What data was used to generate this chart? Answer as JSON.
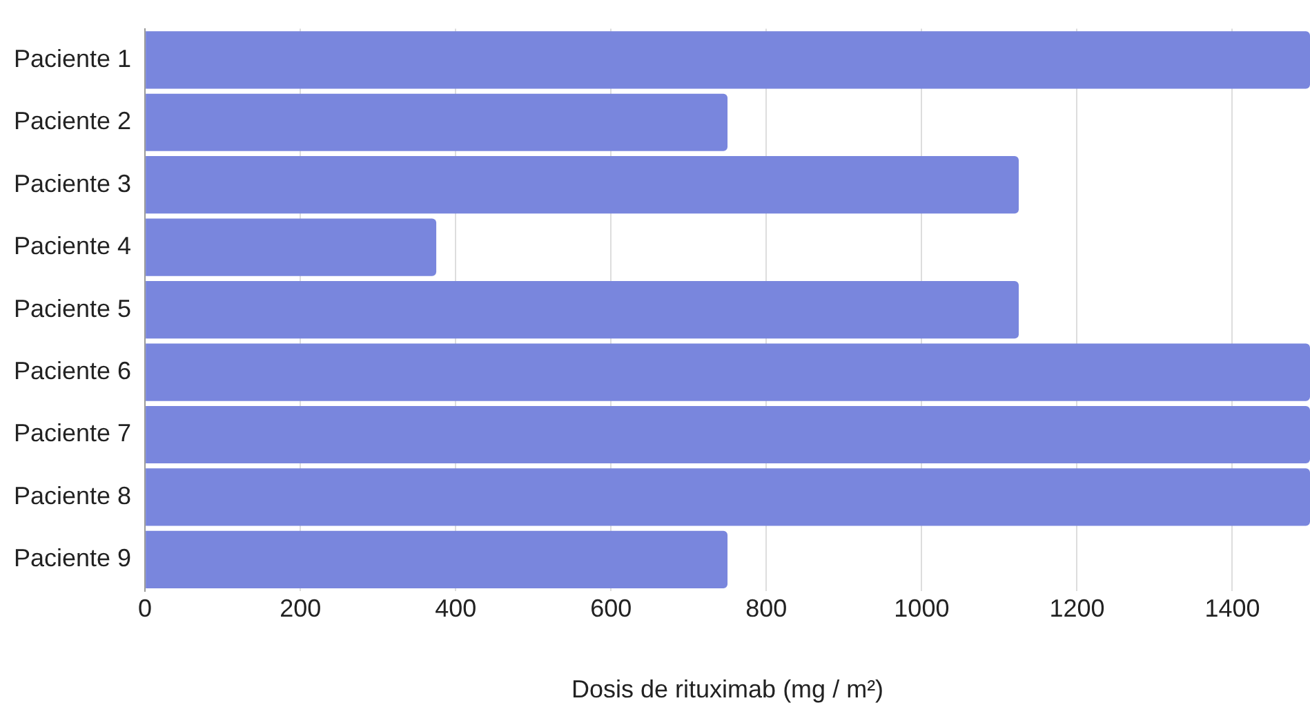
{
  "chart_data": {
    "type": "bar",
    "orientation": "horizontal",
    "categories": [
      "Paciente 1",
      "Paciente 2",
      "Paciente 3",
      "Paciente 4",
      "Paciente 5",
      "Paciente 6",
      "Paciente 7",
      "Paciente 8",
      "Paciente 9"
    ],
    "values": [
      1500,
      750,
      1125,
      375,
      1125,
      1500,
      1500,
      1500,
      750
    ],
    "color": "#7986dd",
    "xlabel": "Dosis de rituximab (mg / m²)",
    "xlim": [
      0,
      1500
    ],
    "xticks": [
      0,
      200,
      400,
      600,
      800,
      1000,
      1200,
      1400
    ],
    "grid": "x",
    "legend": false
  }
}
